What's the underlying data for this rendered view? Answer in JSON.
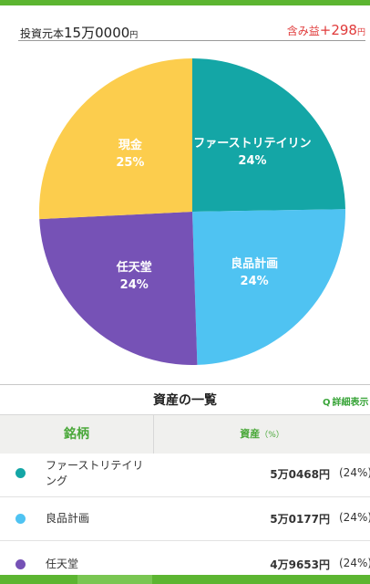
{
  "summary": {
    "invested_label": "投資元本",
    "invested_amount": "15万0000",
    "invested_unit": "円",
    "gain_label": "含み益",
    "gain_amount": "+298",
    "gain_unit": "円"
  },
  "chart_data": {
    "type": "pie",
    "slices": [
      {
        "name": "ファーストリテイリング",
        "display_name": "ファーストリテイリン",
        "percent": 24,
        "label": "24%",
        "color": "#14a6a6"
      },
      {
        "name": "良品計画",
        "display_name": "良品計画",
        "percent": 24,
        "label": "24%",
        "color": "#4fc3f2"
      },
      {
        "name": "任天堂",
        "display_name": "任天堂",
        "percent": 24,
        "label": "24%",
        "color": "#7652b6"
      },
      {
        "name": "現金",
        "display_name": "現金",
        "percent": 25,
        "label": "25%",
        "color": "#fccd4d"
      }
    ]
  },
  "assets_section": {
    "title": "資産の一覧",
    "detail_link": "詳細表示",
    "col_name": "銘柄",
    "col_asset": "資産",
    "col_asset_unit": "（%）"
  },
  "assets": [
    {
      "name": "ファーストリテイリング",
      "value": "5万0468円",
      "share": "(24%)",
      "color": "#14a6a6"
    },
    {
      "name": "良品計画",
      "value": "5万0177円",
      "share": "(24%)",
      "color": "#4fc3f2"
    },
    {
      "name": "任天堂",
      "value": "4万9653円",
      "share": "(24%)",
      "color": "#7652b6"
    }
  ]
}
